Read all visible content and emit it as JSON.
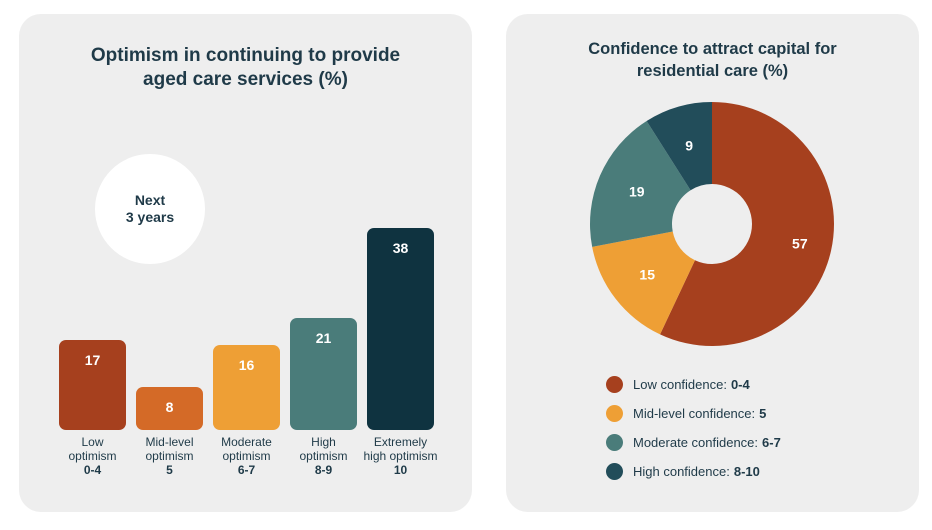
{
  "chart_data": [
    {
      "type": "bar",
      "title_lines": [
        "Optimism in continuing to provide",
        "aged care services (%)"
      ],
      "badge_lines": [
        "Next",
        "3 years"
      ],
      "categories": [
        {
          "label_lines": [
            "Low",
            "optimism"
          ],
          "range": "0-4"
        },
        {
          "label_lines": [
            "Mid-level",
            "optimism"
          ],
          "range": "5"
        },
        {
          "label_lines": [
            "Moderate",
            "optimism"
          ],
          "range": "6-7"
        },
        {
          "label_lines": [
            "High",
            "optimism"
          ],
          "range": "8-9"
        },
        {
          "label_lines": [
            "Extremely",
            "high optimism"
          ],
          "range": "10"
        }
      ],
      "values": [
        17,
        8,
        16,
        21,
        38
      ],
      "colors": [
        "#a6401e",
        "#d46a27",
        "#ee9f35",
        "#4a7c7a",
        "#0f3340"
      ],
      "ylim": [
        0,
        38
      ]
    },
    {
      "type": "pie",
      "title_lines": [
        "Confidence to attract capital for",
        "residential care (%)"
      ],
      "slices": [
        {
          "legend": "Low confidence:",
          "range": "0-4",
          "value": 57,
          "color": "#a6401e"
        },
        {
          "legend": "Mid-level confidence:",
          "range": "5",
          "value": 15,
          "color": "#ee9f35"
        },
        {
          "legend": "Moderate confidence:",
          "range": "6-7",
          "value": 19,
          "color": "#4a7c7a"
        },
        {
          "legend": "High confidence:",
          "range": "8-10",
          "value": 9,
          "color": "#224d5a"
        }
      ],
      "legend_position": "bottom"
    }
  ]
}
